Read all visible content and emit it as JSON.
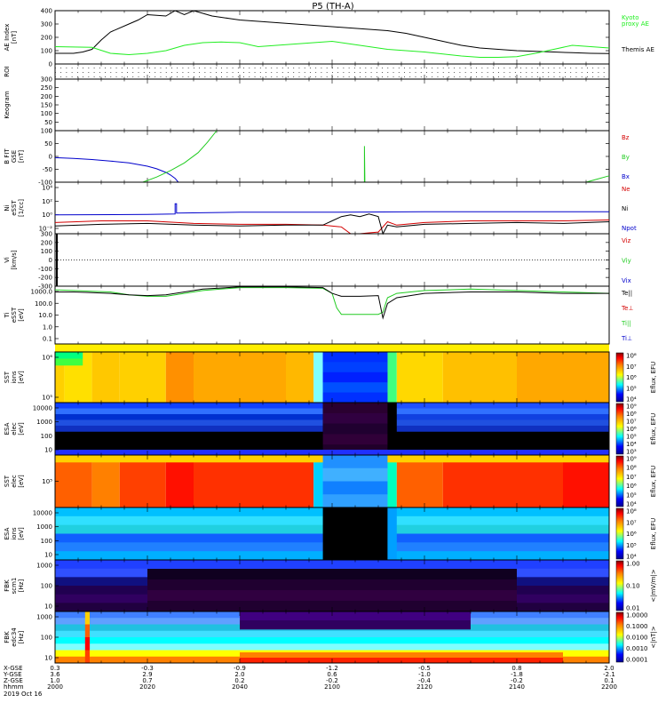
{
  "title": "P5 (TH-A)",
  "date_label": "2019 Oct 16",
  "colors": {
    "black": "#000000",
    "red": "#d40000",
    "green": "#22cc22",
    "blue": "#0000cc",
    "kyoto": "#22ee22"
  },
  "chart_data": [
    {
      "id": "ae",
      "type": "line",
      "ylabel": [
        "AE Index",
        "[nT]"
      ],
      "ylim": [
        0,
        400
      ],
      "yticks": [
        "0",
        "100",
        "200",
        "300",
        "400"
      ],
      "legend": [
        "Kyoto",
        "proxy AE",
        "Themis AE"
      ],
      "series": [
        {
          "name": "Themis AE",
          "color": "#000000",
          "x": [
            0,
            4,
            6,
            8,
            10,
            12,
            16,
            18,
            20,
            24,
            26,
            28,
            30,
            32,
            34,
            36,
            38,
            40,
            44,
            48,
            52,
            56,
            60,
            64,
            68,
            72,
            76,
            80,
            84,
            88,
            92,
            96,
            100,
            104,
            108,
            112,
            116,
            120
          ],
          "y": [
            80,
            80,
            90,
            110,
            180,
            240,
            300,
            330,
            370,
            360,
            400,
            370,
            410,
            380,
            360,
            350,
            340,
            330,
            320,
            310,
            300,
            290,
            280,
            270,
            260,
            250,
            230,
            200,
            170,
            140,
            120,
            110,
            100,
            95,
            90,
            85,
            80,
            78
          ]
        },
        {
          "name": "proxy AE",
          "color": "#22ee22",
          "x": [
            0,
            8,
            12,
            16,
            20,
            24,
            28,
            32,
            36,
            40,
            44,
            48,
            52,
            56,
            60,
            64,
            68,
            72,
            76,
            80,
            84,
            88,
            92,
            96,
            100,
            104,
            108,
            112,
            116,
            120
          ],
          "y": [
            130,
            125,
            80,
            70,
            80,
            100,
            140,
            160,
            165,
            160,
            130,
            140,
            150,
            160,
            170,
            150,
            130,
            110,
            100,
            90,
            75,
            60,
            50,
            50,
            55,
            80,
            110,
            140,
            130,
            120
          ]
        }
      ]
    },
    {
      "id": "roi",
      "type": "scatter",
      "ylabel": [
        "ROI"
      ]
    },
    {
      "id": "keogram",
      "type": "line",
      "ylabel": [
        "Keogram"
      ],
      "ylim": [
        0,
        300
      ],
      "yticks": [
        "0",
        "50",
        "100",
        "150",
        "200",
        "250",
        "300"
      ]
    },
    {
      "id": "bfit",
      "type": "line",
      "ylabel": [
        "B FIT",
        "GSE",
        "[nT]"
      ],
      "ylim": [
        -100,
        100
      ],
      "yticks": [
        "-100",
        "-50",
        "0",
        "50",
        "100"
      ],
      "legend": [
        "Bz",
        "By",
        "Bx"
      ],
      "series": [
        {
          "name": "Bx",
          "color": "#0000cc",
          "x": [
            0,
            4,
            8,
            12,
            16,
            20,
            22,
            24,
            25,
            26,
            26.7
          ],
          "y": [
            -5,
            -8,
            -12,
            -18,
            -25,
            -38,
            -48,
            -62,
            -72,
            -85,
            -100
          ]
        },
        {
          "name": "By",
          "color": "#22cc22",
          "x": [
            19,
            22,
            25,
            28,
            31,
            33,
            35
          ],
          "y": [
            -100,
            -80,
            -55,
            -25,
            15,
            55,
            100
          ]
        },
        {
          "name": "By",
          "color": "#22cc22",
          "x": [
            67,
            67,
            67.1
          ],
          "y": [
            -100,
            40,
            -100
          ]
        },
        {
          "name": "By",
          "color": "#22cc22",
          "x": [
            115,
            117,
            120
          ],
          "y": [
            -100,
            -90,
            -75
          ]
        }
      ]
    },
    {
      "id": "ni",
      "type": "line",
      "ylabel": [
        "Ni",
        "eSST",
        "[1/cc]"
      ],
      "ylim": [
        -2,
        4
      ],
      "ytick_labels": [
        "10⁴",
        "10²",
        "10⁰",
        "10⁻²"
      ],
      "legend": [
        "Ne",
        "Ni",
        "Npot"
      ],
      "series": [
        {
          "name": "Ni",
          "color": "#0000cc",
          "x": [
            0,
            20,
            26,
            26,
            26.3,
            26.3,
            40,
            60,
            80,
            100,
            120
          ],
          "y": [
            0.2,
            0.25,
            0.3,
            1.5,
            1.5,
            0.4,
            0.5,
            0.5,
            0.55,
            0.55,
            0.55
          ]
        },
        {
          "name": "Ne",
          "color": "#d40000",
          "x": [
            0,
            10,
            20,
            30,
            40,
            50,
            58,
            62,
            64,
            66,
            68,
            70,
            72,
            74,
            80,
            90,
            100,
            110,
            120
          ],
          "y": [
            -0.7,
            -0.5,
            -0.5,
            -0.8,
            -0.9,
            -0.9,
            -1.0,
            -1.2,
            -2.0,
            -2.0,
            -1.9,
            -1.8,
            -0.6,
            -1.0,
            -0.7,
            -0.5,
            -0.5,
            -0.5,
            -0.4
          ]
        },
        {
          "name": "Npot",
          "color": "#000000",
          "x": [
            0,
            10,
            20,
            30,
            40,
            50,
            58,
            60,
            62,
            64,
            66,
            68,
            70,
            71,
            72,
            74,
            80,
            90,
            100,
            110,
            120
          ],
          "y": [
            -1.1,
            -0.9,
            -0.8,
            -1.0,
            -1.1,
            -1.0,
            -1.0,
            -0.5,
            0.0,
            0.2,
            0.0,
            0.3,
            0.0,
            -2.0,
            -1.0,
            -1.2,
            -0.9,
            -0.8,
            -0.7,
            -0.8,
            -0.6
          ]
        }
      ]
    },
    {
      "id": "vi",
      "type": "line",
      "ylabel": [
        "Vi",
        "[km/s]"
      ],
      "ylim": [
        -300,
        300
      ],
      "yticks": [
        "-300",
        "-200",
        "-100",
        "0",
        "100",
        "200",
        "300"
      ],
      "legend": [
        "Viz",
        "Viy",
        "Vix"
      ]
    },
    {
      "id": "ti",
      "type": "line",
      "ylabel": [
        "Ti",
        "eSST",
        "[eV]"
      ],
      "ylim": [
        -1,
        3
      ],
      "ytick_labels": [
        "1000.0",
        "100.0",
        "10.0",
        "1.0",
        "0.1"
      ],
      "legend": [
        "Te||",
        "Te⊥",
        "Ti||",
        "Ti⊥"
      ],
      "series": [
        {
          "name": "Ti||",
          "color": "#22cc22",
          "x": [
            0,
            4,
            8,
            12,
            16,
            20,
            24,
            28,
            32,
            40,
            50,
            58,
            60,
            61,
            62,
            70,
            71,
            72,
            74,
            80,
            90,
            100,
            110,
            120
          ],
          "y": [
            2.75,
            2.7,
            2.65,
            2.6,
            2.4,
            2.3,
            2.3,
            2.5,
            2.7,
            2.9,
            2.9,
            2.85,
            2.5,
            1.5,
            1.05,
            1.05,
            1.2,
            2.2,
            2.5,
            2.7,
            2.8,
            2.7,
            2.6,
            2.5
          ]
        },
        {
          "name": "Te||",
          "color": "#000000",
          "x": [
            0,
            4,
            8,
            12,
            16,
            20,
            24,
            28,
            32,
            40,
            50,
            58,
            60,
            62,
            66,
            70,
            71,
            72,
            74,
            80,
            90,
            100,
            110,
            120
          ],
          "y": [
            2.6,
            2.6,
            2.55,
            2.5,
            2.4,
            2.35,
            2.4,
            2.6,
            2.8,
            2.95,
            2.95,
            2.9,
            2.5,
            2.3,
            2.3,
            2.35,
            0.8,
            1.8,
            2.2,
            2.5,
            2.6,
            2.6,
            2.5,
            2.5
          ]
        }
      ]
    },
    {
      "id": "sst_i",
      "type": "heatmap",
      "ylabel": [
        "SST",
        "ions",
        "[eV]"
      ],
      "ytick_labels": [
        "10⁶",
        "10⁵"
      ],
      "cbar_title": "Eflux, EFU",
      "cbar_ticks": [
        "10⁸",
        "10⁷",
        "10⁶",
        "10⁵",
        "10⁴"
      ]
    },
    {
      "id": "esa_e",
      "type": "heatmap",
      "ylabel": [
        "ESA",
        "elec",
        "[eV]"
      ],
      "ytick_labels": [
        "10000",
        "1000",
        "100",
        "10"
      ],
      "cbar_title": "Eflux, EFU",
      "cbar_ticks": [
        "10⁹",
        "10⁸",
        "10⁷",
        "10⁶",
        "10⁵",
        "10⁴",
        "10³"
      ]
    },
    {
      "id": "sst_e",
      "type": "heatmap",
      "ylabel": [
        "SST",
        "elec",
        "[eV]"
      ],
      "ytick_labels": [
        "10⁵"
      ],
      "cbar_title": "Eflux, EFU",
      "cbar_ticks": [
        "10⁹",
        "10⁸",
        "10⁷",
        "10⁶",
        "10⁵",
        "10⁴"
      ]
    },
    {
      "id": "esa_i",
      "type": "heatmap",
      "ylabel": [
        "ESA",
        "ions",
        "[eV]"
      ],
      "ytick_labels": [
        "10000",
        "1000",
        "100",
        "10"
      ],
      "cbar_title": "Eflux, EFU",
      "cbar_ticks": [
        "10⁸",
        "10⁷",
        "10⁶",
        "10⁵",
        "10⁴"
      ]
    },
    {
      "id": "fbk_b",
      "type": "heatmap",
      "ylabel": [
        "FBK",
        "scm1",
        "[Hz]"
      ],
      "ytick_labels": [
        "1000",
        "100",
        "10"
      ],
      "cbar_title": "<|mV/m|>",
      "cbar_ticks": [
        "1.00",
        "0.10",
        "0.01"
      ]
    },
    {
      "id": "fbk_e",
      "type": "heatmap",
      "ylabel": [
        "FBK",
        "edc34",
        "[Hz]"
      ],
      "ytick_labels": [
        "1000",
        "100",
        "10"
      ],
      "cbar_title": "<|nT|>",
      "cbar_ticks": [
        "1.0000",
        "0.1000",
        "0.0100",
        "0.0010",
        "0.0001"
      ]
    }
  ],
  "xaxis": {
    "row_labels": [
      "X-GSE",
      "Y-GSE",
      "Z-GSE",
      "hhmm"
    ],
    "columns": [
      {
        "x": 0,
        "vals": [
          "0.3",
          "3.6",
          "1.0",
          "2000"
        ]
      },
      {
        "x": 20,
        "vals": [
          "-0.3",
          "2.9",
          "0.7",
          "2020"
        ]
      },
      {
        "x": 40,
        "vals": [
          "-0.9",
          "2.0",
          "0.2",
          "2040"
        ]
      },
      {
        "x": 60,
        "vals": [
          "-1.2",
          "0.6",
          "-0.2",
          "2100"
        ]
      },
      {
        "x": 80,
        "vals": [
          "-0.5",
          "-1.0",
          "-0.4",
          "2120"
        ]
      },
      {
        "x": 100,
        "vals": [
          "0.8",
          "-1.8",
          "-0.2",
          "2140"
        ]
      },
      {
        "x": 120,
        "vals": [
          "2.0",
          "-2.1",
          "0.1",
          "2200"
        ]
      }
    ]
  }
}
